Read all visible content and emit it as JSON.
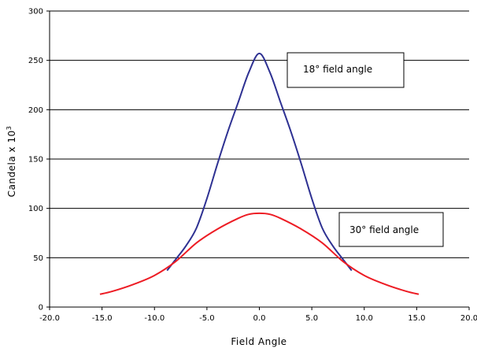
{
  "chart_data": {
    "type": "line",
    "title": "",
    "xlabel": "Field Angle",
    "ylabel": "Candela x 10",
    "ylabel_superscript": "3",
    "xlim": [
      -20,
      20
    ],
    "ylim": [
      0,
      300
    ],
    "x_ticks": [
      -20,
      -15,
      -10,
      -5,
      0,
      5,
      10,
      15,
      20
    ],
    "x_tick_labels": [
      "-20.0",
      "-15.0",
      "-10.0",
      "-5.0",
      "0.0",
      "5.0",
      "10.0",
      "15.0",
      "20.0"
    ],
    "y_ticks": [
      0,
      50,
      100,
      150,
      200,
      250,
      300
    ],
    "y_tick_labels": [
      "0",
      "50",
      "100",
      "150",
      "200",
      "250",
      "300"
    ],
    "grid": "horizontal",
    "series": [
      {
        "color": "#2e3192",
        "x": [
          -8.8,
          -8,
          -7,
          -6,
          -5,
          -4,
          -3,
          -2,
          -1,
          0,
          1,
          2,
          3,
          4,
          5,
          6,
          7,
          8,
          8.8
        ],
        "y": [
          37,
          48,
          62,
          80,
          110,
          145,
          178,
          208,
          238,
          257,
          238,
          208,
          178,
          145,
          110,
          80,
          62,
          48,
          37
        ]
      },
      {
        "color": "#ed1c24",
        "x": [
          -15.2,
          -14,
          -12,
          -10,
          -8,
          -6,
          -4,
          -2,
          -1,
          0,
          1,
          2,
          4,
          6,
          8,
          10,
          12,
          14,
          15.2
        ],
        "y": [
          13,
          16,
          23,
          32,
          46,
          65,
          79,
          90,
          94,
          95,
          94,
          90,
          79,
          65,
          46,
          32,
          23,
          16,
          13
        ]
      }
    ],
    "annotations": [
      {
        "text": "18° field angle"
      },
      {
        "text": "30° field angle"
      }
    ]
  }
}
